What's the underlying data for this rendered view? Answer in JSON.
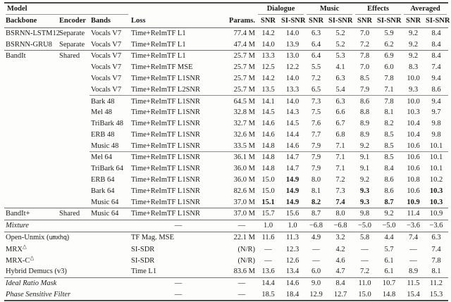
{
  "table": {
    "model_group_label": "Model",
    "metric_groups": [
      {
        "label": "Dialogue"
      },
      {
        "label": "Music"
      },
      {
        "label": "Effects"
      },
      {
        "label": "Averaged"
      }
    ],
    "metric_subheaders": [
      "SNR",
      "SI-SNR"
    ],
    "columns": [
      "Backbone",
      "Encoder",
      "Bands",
      "Loss",
      "Params."
    ],
    "sections": [
      {
        "rows": [
          {
            "cells": [
              "BSRNN-LSTM12",
              "Separate",
              "Vocals V7",
              "Time+ReImTF L1",
              "77.4 M",
              "14.2",
              "14.0",
              "6.3",
              "5.2",
              "7.0",
              "5.9",
              "9.2",
              "8.4"
            ]
          },
          {
            "cells": [
              "BSRNN-GRU8",
              "Separate",
              "Vocals V7",
              "Time+ReImTF L1",
              "47.4 M",
              "14.0",
              "13.9",
              "6.4",
              "5.2",
              "7.2",
              "6.2",
              "9.2",
              "8.4"
            ]
          }
        ]
      },
      {
        "rows": [
          {
            "cells": [
              "BandIt",
              "Shared",
              "Vocals V7",
              "Time+ReImTF L1",
              "25.7 M",
              "13.3",
              "13.0",
              "6.4",
              "5.3",
              "7.8",
              "6.9",
              "9.2",
              "8.4"
            ]
          },
          {
            "cells": [
              "",
              "",
              "Vocals V7",
              "Time+ReImTF MSE",
              "25.7 M",
              "12.5",
              "12.2",
              "5.5",
              "4.1",
              "7.0",
              "6.0",
              "8.3",
              "7.4"
            ]
          },
          {
            "cells": [
              "",
              "",
              "Vocals V7",
              "Time+ReImTF L1SNR",
              "25.7 M",
              "14.2",
              "14.0",
              "7.2",
              "6.3",
              "8.5",
              "7.8",
              "10.0",
              "9.4"
            ]
          },
          {
            "cells": [
              "",
              "",
              "Vocals V7",
              "Time+ReImTF L2SNR",
              "25.7 M",
              "13.5",
              "13.3",
              "6.5",
              "5.4",
              "7.9",
              "7.1",
              "9.3",
              "8.6"
            ]
          },
          {
            "pr": true,
            "cells": [
              "",
              "",
              "Bark 48",
              "Time+ReImTF L1SNR",
              "64.5 M",
              "14.1",
              "14.0",
              "7.3",
              "6.3",
              "8.6",
              "7.8",
              "10.0",
              "9.4"
            ]
          },
          {
            "cells": [
              "",
              "",
              "Mel 48",
              "Time+ReImTF L1SNR",
              "32.8 M",
              "14.5",
              "14.3",
              "7.5",
              "6.6",
              "8.8",
              "8.1",
              "10.3",
              "9.7"
            ]
          },
          {
            "cells": [
              "",
              "",
              "TriBark 48",
              "Time+ReImTF L1SNR",
              "32.7 M",
              "14.6",
              "14.5",
              "7.6",
              "6.7",
              "8.9",
              "8.2",
              "10.4",
              "9.8"
            ]
          },
          {
            "cells": [
              "",
              "",
              "ERB 48",
              "Time+ReImTF L1SNR",
              "32.6 M",
              "14.6",
              "14.4",
              "7.7",
              "6.8",
              "8.9",
              "8.5",
              "10.4",
              "9.8"
            ]
          },
          {
            "cells": [
              "",
              "",
              "Music 48",
              "Time+ReImTF L1SNR",
              "33.5 M",
              "14.8",
              "14.6",
              "7.9",
              "7.1",
              "9.2",
              "8.5",
              "10.6",
              "10.1"
            ]
          },
          {
            "pr": true,
            "cells": [
              "",
              "",
              "Mel 64",
              "Time+ReImTF L1SNR",
              "36.1 M",
              "14.8",
              "14.7",
              "7.9",
              "7.1",
              "9.1",
              "8.5",
              "10.6",
              "10.1"
            ]
          },
          {
            "cells": [
              "",
              "",
              "TriBark 64",
              "Time+ReImTF L1SNR",
              "36.0 M",
              "14.8",
              "14.7",
              "7.9",
              "7.1",
              "9.1",
              "8.4",
              "10.6",
              "10.1"
            ]
          },
          {
            "cells": [
              "",
              "",
              "ERB 64",
              "Time+ReImTF L1SNR",
              "36.0 M",
              "15.0",
              {
                "t": "14.9",
                "b": true
              },
              "8.0",
              "7.2",
              "9.2",
              "8.6",
              "10.8",
              "10.2"
            ]
          },
          {
            "cells": [
              "",
              "",
              "Bark 64",
              "Time+ReImTF L1SNR",
              "82.6 M",
              "15.0",
              {
                "t": "14.9",
                "b": true
              },
              "8.1",
              "7.3",
              {
                "t": "9.3",
                "b": true
              },
              "8.6",
              "10.6",
              {
                "t": "10.3",
                "b": true
              }
            ]
          },
          {
            "cells": [
              "",
              "",
              "Music 64",
              "Time+ReImTF L1SNR",
              "37.0 M",
              {
                "t": "15.1",
                "b": true
              },
              {
                "t": "14.9",
                "b": true
              },
              {
                "t": "8.2",
                "b": true
              },
              {
                "t": "7.4",
                "b": true
              },
              {
                "t": "9.3",
                "b": true
              },
              {
                "t": "8.7",
                "b": true
              },
              {
                "t": "10.9",
                "b": true
              },
              {
                "t": "10.3",
                "b": true
              }
            ]
          }
        ]
      },
      {
        "rows": [
          {
            "cells": [
              "BandIt+",
              "Shared",
              "Music 64",
              "Time+ReImTF L1SNR",
              "37.0 M",
              "15.7",
              "15.6",
              "8.7",
              "8.0",
              "9.8",
              "9.2",
              "11.4",
              "10.9"
            ]
          }
        ]
      },
      {
        "rows": [
          {
            "cells": [
              {
                "t": "Mixture",
                "i": true
              },
              "",
              "",
              "—",
              "—",
              "1.0",
              "1.0",
              "−6.8",
              "−6.8",
              "−5.0",
              "−5.0",
              "−3.6",
              "−3.6"
            ]
          }
        ]
      },
      {
        "rows": [
          {
            "span3": true,
            "cells": [
              {
                "parts": [
                  {
                    "t": "Open-Unmix ("
                  },
                  {
                    "t": "umxhq",
                    "mono": true
                  },
                  {
                    "t": ")"
                  }
                ]
              },
              "TF Mag. MSE",
              "22.1 M",
              "11.6",
              "11.3",
              "4.9",
              "3.2",
              "5.8",
              "4.4",
              "7.4",
              "6.3"
            ]
          },
          {
            "span3": true,
            "cells": [
              {
                "parts": [
                  {
                    "t": "MRX"
                  },
                  {
                    "t": "△",
                    "sup": true
                  }
                ]
              },
              "SI-SDR",
              "(N/R)",
              "—",
              "12.3",
              "—",
              "4.2",
              "—",
              "5.7",
              "—",
              "7.4"
            ]
          },
          {
            "span3": true,
            "cells": [
              {
                "parts": [
                  {
                    "t": "MRX-C"
                  },
                  {
                    "t": "△",
                    "sup": true
                  }
                ]
              },
              "SI-SDR",
              "(N/R)",
              "—",
              "12.6",
              "—",
              "4.6",
              "—",
              "6.1",
              "—",
              "7.8"
            ]
          },
          {
            "span3": true,
            "cells": [
              "Hybrid Demucs (v3)",
              "Time L1",
              "83.6 M",
              "13.6",
              "13.4",
              "6.0",
              "4.7",
              "7.2",
              "6.1",
              "8.9",
              "8.1"
            ]
          }
        ]
      },
      {
        "rows": [
          {
            "span3": true,
            "cells": [
              {
                "t": "Ideal Ratio Mask",
                "i": true
              },
              "—",
              "—",
              "14.4",
              "14.6",
              "9.0",
              "8.4",
              "11.0",
              "10.7",
              "11.5",
              "11.2"
            ]
          },
          {
            "span3": true,
            "cells": [
              {
                "t": "Phase Sensitive Filter",
                "i": true
              },
              "—",
              "—",
              "18.5",
              "18.4",
              "12.9",
              "12.7",
              "15.0",
              "14.8",
              "15.4",
              "15.3"
            ]
          }
        ]
      }
    ]
  }
}
